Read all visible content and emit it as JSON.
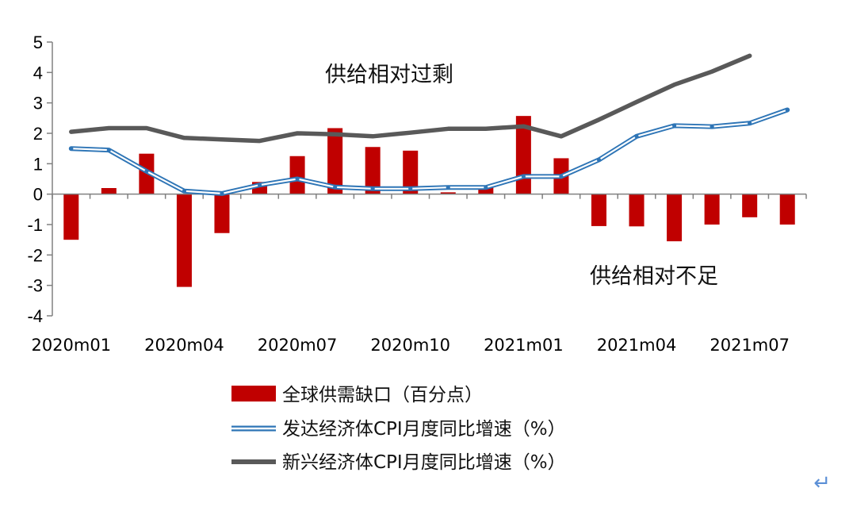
{
  "chart_data": {
    "type": "bar",
    "categories": [
      "2020m01",
      "2020m02",
      "2020m03",
      "2020m04",
      "2020m05",
      "2020m06",
      "2020m07",
      "2020m08",
      "2020m09",
      "2020m10",
      "2020m11",
      "2020m12",
      "2021m01",
      "2021m02",
      "2021m03",
      "2021m04",
      "2021m05",
      "2021m06",
      "2021m07",
      "2021m08"
    ],
    "x_tick_labels": [
      "2020m01",
      "2020m04",
      "2020m07",
      "2020m10",
      "2021m01",
      "2021m04",
      "2021m07"
    ],
    "ylim": [
      -4,
      5
    ],
    "y_ticks": [
      "-4",
      "-3",
      "-2",
      "-1",
      "0",
      "1",
      "2",
      "3",
      "4",
      "5"
    ],
    "series": [
      {
        "name": "全球供需缺口（百分点）",
        "kind": "bar",
        "color": "#c00000",
        "values": [
          -1.5,
          0.2,
          1.33,
          -3.05,
          -1.28,
          0.4,
          1.25,
          2.17,
          1.55,
          1.43,
          0.06,
          0.25,
          2.57,
          1.18,
          -1.05,
          -1.06,
          -1.55,
          -1.0,
          -0.76,
          -1.0
        ]
      },
      {
        "name": "发达经济体CPI月度同比增速（%）",
        "kind": "line",
        "color": "#2e75b6",
        "values": [
          1.5,
          1.45,
          0.75,
          0.1,
          0.02,
          0.3,
          0.5,
          0.23,
          0.18,
          0.18,
          0.22,
          0.22,
          0.58,
          0.58,
          1.13,
          1.9,
          2.25,
          2.22,
          2.33,
          2.77
        ]
      },
      {
        "name": "新兴经济体CPI月度同比增速（%）",
        "kind": "line",
        "color": "#595959",
        "values": [
          2.05,
          2.17,
          2.17,
          1.85,
          1.8,
          1.75,
          2.0,
          1.97,
          1.9,
          2.02,
          2.15,
          2.15,
          2.23,
          1.9,
          2.45,
          3.03,
          3.6,
          4.03,
          4.55,
          null
        ]
      }
    ],
    "annotations": [
      "供给相对过剩",
      "供给相对不足"
    ],
    "grid": false,
    "legend_position": "bottom"
  },
  "return_symbol": "↵"
}
